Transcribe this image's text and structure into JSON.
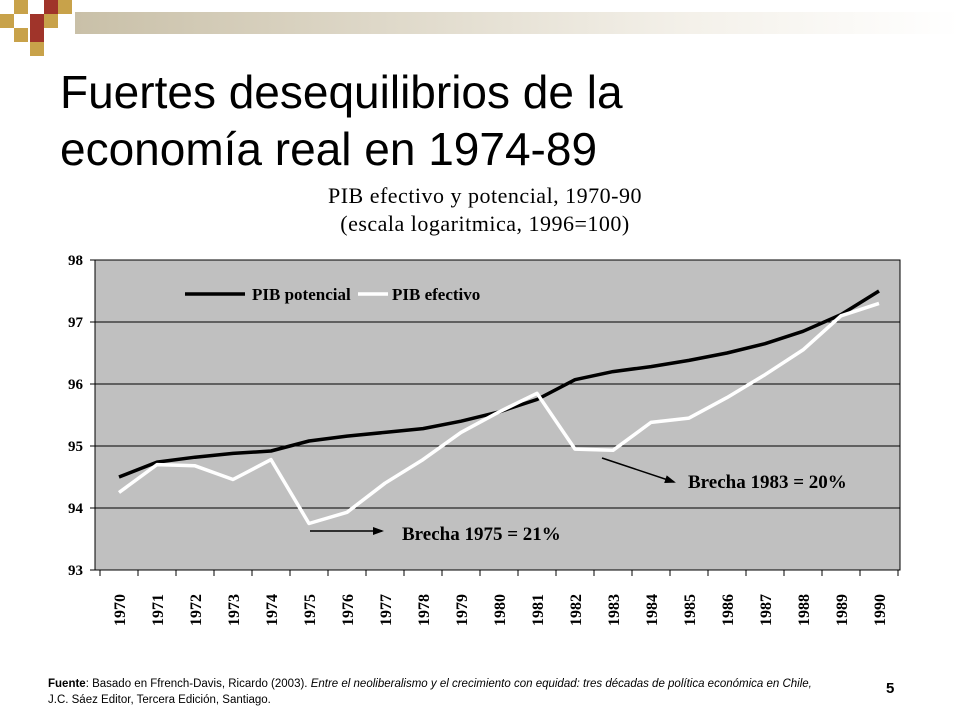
{
  "slide": {
    "title_line1": "Fuertes desequilibrios de la",
    "title_line2": "economía real en 1974-89",
    "page_number": "5",
    "source_label": "Fuente",
    "source_text_1": ": Basado en Ffrench-Davis, Ricardo (2003). ",
    "source_italic": "Entre el neoliberalismo y el crecimiento con equidad: tres décadas de política económica en Chile,",
    "source_text_2": " J.C. Sáez Editor, Tercera Edición, Santiago.",
    "colors": {
      "deco_red": "#a0342a",
      "deco_gold": "#c8a24a",
      "bar": "#c9c0a8"
    }
  },
  "chart_data": {
    "type": "line",
    "title": "PIB efectivo y potencial, 1970-90",
    "subtitle": "(escala logaritmica, 1996=100)",
    "x": [
      "1970",
      "1971",
      "1972",
      "1973",
      "1974",
      "1975",
      "1976",
      "1977",
      "1978",
      "1979",
      "1980",
      "1981",
      "1982",
      "1983",
      "1984",
      "1985",
      "1986",
      "1987",
      "1988",
      "1989",
      "1990"
    ],
    "ylim": [
      93,
      98
    ],
    "yticks": [
      "93",
      "94",
      "95",
      "96",
      "97",
      "98"
    ],
    "grid": true,
    "background": "#c0c0c0",
    "legend_position": "top-left",
    "series": [
      {
        "name": "PIB potencial",
        "color": "#000000",
        "values": [
          94.5,
          94.74,
          94.82,
          94.88,
          94.92,
          95.08,
          95.16,
          95.22,
          95.28,
          95.4,
          95.55,
          95.75,
          96.07,
          96.2,
          96.28,
          96.38,
          96.5,
          96.65,
          96.85,
          97.12,
          97.5
        ]
      },
      {
        "name": "PIB efectivo",
        "color": "#ffffff",
        "values": [
          94.25,
          94.7,
          94.68,
          94.46,
          94.78,
          93.75,
          93.93,
          94.4,
          94.78,
          95.22,
          95.55,
          95.85,
          94.95,
          94.93,
          95.38,
          95.45,
          95.78,
          96.15,
          96.55,
          97.1,
          97.3
        ]
      }
    ],
    "annotations": [
      {
        "text": "Brecha 1975 = 21%"
      },
      {
        "text": "Brecha 1983 = 20%"
      }
    ]
  }
}
